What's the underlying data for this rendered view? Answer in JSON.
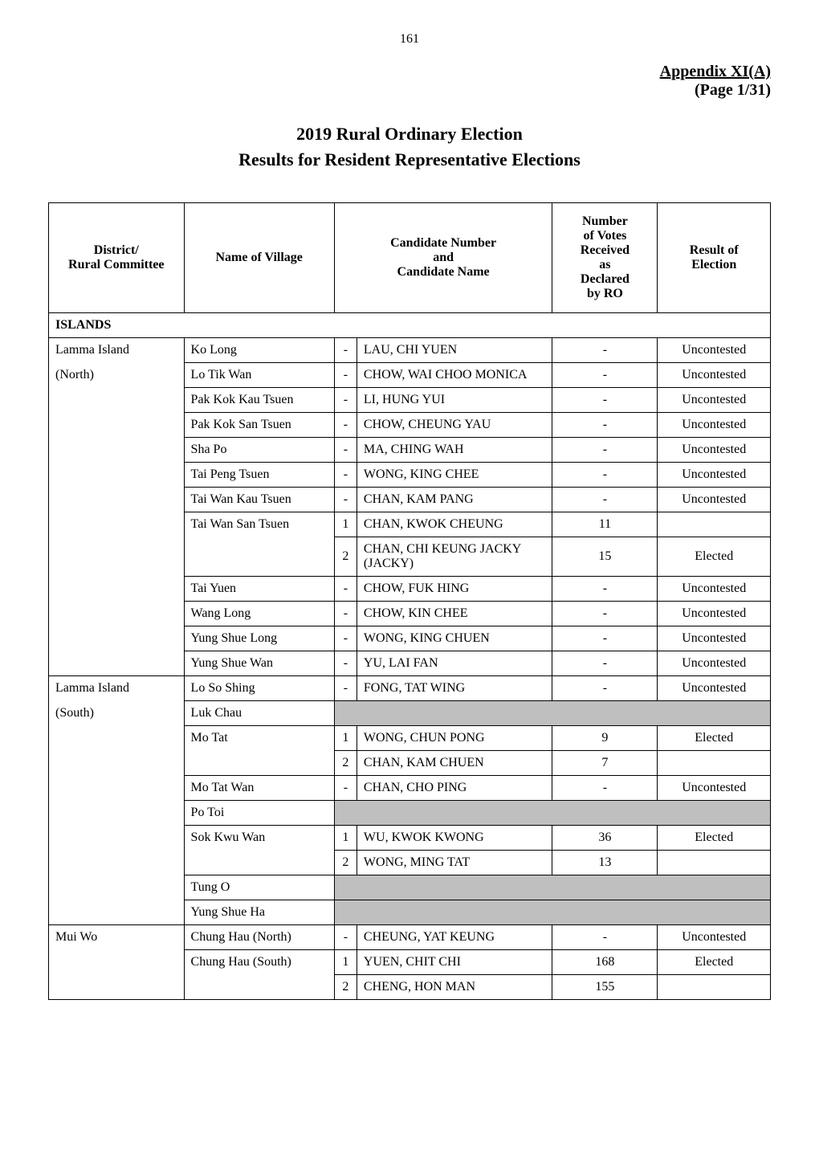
{
  "page_number": "161",
  "appendix": {
    "title": "Appendix XI(A)",
    "page_ref": "(Page  1/31)"
  },
  "title": "2019 Rural Ordinary Election",
  "subtitle": "Results for Resident Representative Elections",
  "headers": {
    "district": "District/\nRural Committee",
    "village": "Name of Village",
    "candidate": "Candidate Number\nand\nCandidate Name",
    "votes": "Number of Votes Received as Declared by RO",
    "result": "Result of Election"
  },
  "section": "ISLANDS",
  "rows": [
    {
      "district": "Lamma Island",
      "village": "Ko Long",
      "num": "-",
      "name": "LAU, CHI YUEN",
      "votes": "-",
      "result": "Uncontested"
    },
    {
      "district": "(North)",
      "village": "Lo Tik Wan",
      "num": "-",
      "name": "CHOW, WAI CHOO MONICA",
      "votes": "-",
      "result": "Uncontested"
    },
    {
      "district": "",
      "village": "Pak Kok Kau Tsuen",
      "num": "-",
      "name": "LI, HUNG YUI",
      "votes": "-",
      "result": "Uncontested"
    },
    {
      "district": "",
      "village": "Pak Kok San Tsuen",
      "num": "-",
      "name": "CHOW, CHEUNG YAU",
      "votes": "-",
      "result": "Uncontested"
    },
    {
      "district": "",
      "village": "Sha Po",
      "num": "-",
      "name": "MA, CHING WAH",
      "votes": "-",
      "result": "Uncontested"
    },
    {
      "district": "",
      "village": "Tai Peng Tsuen",
      "num": "-",
      "name": "WONG, KING CHEE",
      "votes": "-",
      "result": "Uncontested"
    },
    {
      "district": "",
      "village": "Tai Wan Kau Tsuen",
      "num": "-",
      "name": "CHAN, KAM PANG",
      "votes": "-",
      "result": "Uncontested"
    },
    {
      "district": "",
      "village": "Tai Wan San Tsuen",
      "num": "1",
      "name": "CHAN, KWOK CHEUNG",
      "votes": "11",
      "result": ""
    },
    {
      "district": "",
      "village": "",
      "num": "2",
      "name": "CHAN, CHI KEUNG JACKY (JACKY)",
      "votes": "15",
      "result": "Elected"
    },
    {
      "district": "",
      "village": "Tai Yuen",
      "num": "-",
      "name": "CHOW, FUK HING",
      "votes": "-",
      "result": "Uncontested"
    },
    {
      "district": "",
      "village": "Wang Long",
      "num": "-",
      "name": "CHOW, KIN CHEE",
      "votes": "-",
      "result": "Uncontested"
    },
    {
      "district": "",
      "village": "Yung Shue Long",
      "num": "-",
      "name": "WONG, KING CHUEN",
      "votes": "-",
      "result": "Uncontested"
    },
    {
      "district": "",
      "village": "Yung Shue Wan",
      "num": "-",
      "name": "YU, LAI FAN",
      "votes": "-",
      "result": "Uncontested"
    },
    {
      "district": "Lamma Island",
      "village": "Lo So Shing",
      "num": "-",
      "name": "FONG, TAT WING",
      "votes": "-",
      "result": "Uncontested"
    },
    {
      "district": "(South)",
      "village": "Luk Chau",
      "num": "",
      "name": "",
      "votes": "",
      "result": "",
      "empty": true
    },
    {
      "district": "",
      "village": "Mo Tat",
      "num": "1",
      "name": "WONG, CHUN PONG",
      "votes": "9",
      "result": "Elected"
    },
    {
      "district": "",
      "village": "",
      "num": "2",
      "name": "CHAN, KAM CHUEN",
      "votes": "7",
      "result": ""
    },
    {
      "district": "",
      "village": "Mo Tat Wan",
      "num": "-",
      "name": "CHAN, CHO PING",
      "votes": "-",
      "result": "Uncontested"
    },
    {
      "district": "",
      "village": "Po Toi",
      "num": "",
      "name": "",
      "votes": "",
      "result": "",
      "empty": true
    },
    {
      "district": "",
      "village": "Sok Kwu Wan",
      "num": "1",
      "name": "WU, KWOK KWONG",
      "votes": "36",
      "result": "Elected"
    },
    {
      "district": "",
      "village": "",
      "num": "2",
      "name": "WONG, MING TAT",
      "votes": "13",
      "result": ""
    },
    {
      "district": "",
      "village": "Tung O",
      "num": "",
      "name": "",
      "votes": "",
      "result": "",
      "empty": true
    },
    {
      "district": "",
      "village": "Yung Shue Ha",
      "num": "",
      "name": "",
      "votes": "",
      "result": "",
      "empty": true
    },
    {
      "district": "Mui Wo",
      "village": "Chung Hau (North)",
      "num": "-",
      "name": "CHEUNG, YAT KEUNG",
      "votes": "-",
      "result": "Uncontested"
    },
    {
      "district": "",
      "village": "Chung Hau (South)",
      "num": "1",
      "name": "YUEN, CHIT CHI",
      "votes": "168",
      "result": "Elected"
    },
    {
      "district": "",
      "village": "",
      "num": "2",
      "name": "CHENG, HON MAN",
      "votes": "155",
      "result": ""
    }
  ]
}
